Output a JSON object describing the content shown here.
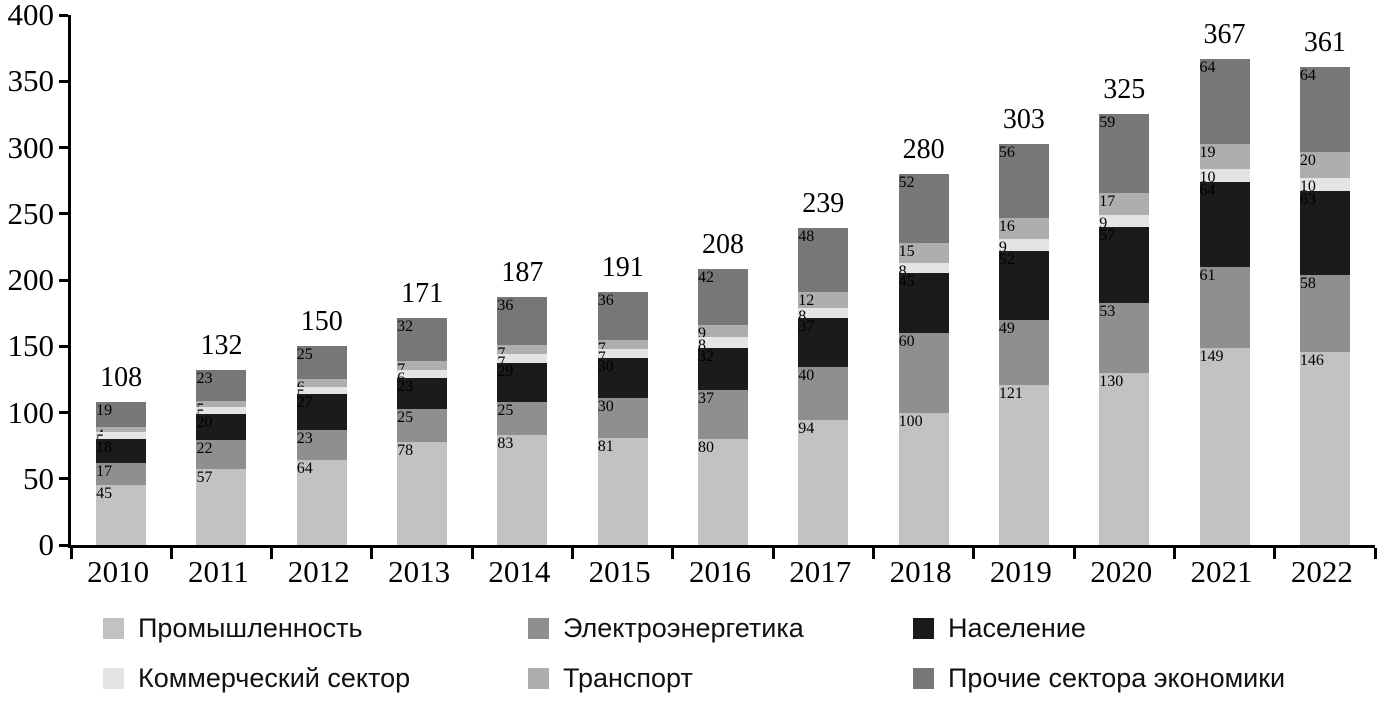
{
  "chart_data": {
    "type": "bar",
    "stacked": true,
    "title": "",
    "xlabel": "",
    "ylabel": "",
    "ylim": [
      0,
      400
    ],
    "yticks": [
      0,
      50,
      100,
      150,
      200,
      250,
      300,
      350,
      400
    ],
    "grid": false,
    "legend_position": "bottom",
    "categories": [
      "2010",
      "2011",
      "2012",
      "2013",
      "2014",
      "2015",
      "2016",
      "2017",
      "2018",
      "2019",
      "2020",
      "2021",
      "2022"
    ],
    "totals": [
      108,
      132,
      150,
      171,
      187,
      191,
      208,
      239,
      280,
      303,
      325,
      367,
      361
    ],
    "series": [
      {
        "name": "Промышленность",
        "color": "#c2c2c2",
        "values": [
          45,
          57,
          64,
          78,
          83,
          81,
          80,
          94,
          100,
          121,
          130,
          149,
          146
        ]
      },
      {
        "name": "Электроэнергетика",
        "color": "#8f8f8f",
        "values": [
          17,
          22,
          23,
          25,
          25,
          30,
          37,
          40,
          60,
          49,
          53,
          61,
          58
        ]
      },
      {
        "name": "Население",
        "color": "#1b1b1b",
        "values": [
          18,
          20,
          27,
          23,
          29,
          30,
          32,
          37,
          45,
          52,
          57,
          64,
          63
        ]
      },
      {
        "name": "Коммерческий сектор",
        "color": "#e4e4e4",
        "values": [
          5,
          5,
          5,
          6,
          7,
          7,
          8,
          8,
          8,
          9,
          9,
          10,
          10
        ]
      },
      {
        "name": "Транспорт",
        "color": "#aeaeae",
        "values": [
          4,
          5,
          6,
          7,
          7,
          7,
          9,
          12,
          15,
          16,
          17,
          19,
          20
        ]
      },
      {
        "name": "Прочие сектора экономики",
        "color": "#777777",
        "values": [
          19,
          23,
          25,
          32,
          36,
          36,
          42,
          48,
          52,
          56,
          59,
          64,
          64
        ]
      }
    ],
    "legend_rows": [
      3,
      3
    ],
    "axis_color": "#000000"
  }
}
